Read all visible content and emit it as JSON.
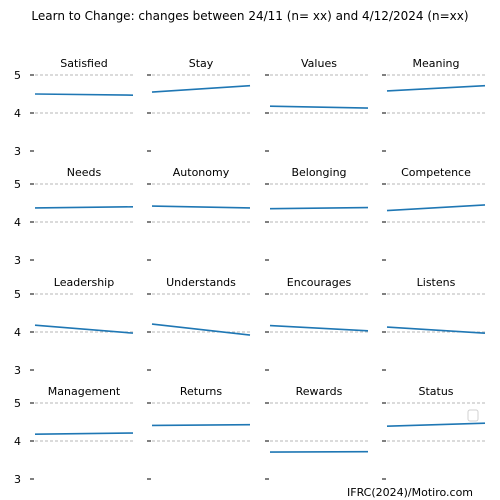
{
  "title": "Learn to Change: changes between 24/11 (n= xx) and 4/12/2024 (n=xx)",
  "credit": "IFRC(2024)/Motiro.com",
  "colors": {
    "line": "#1f77b4",
    "grid": "#a0a0a0"
  },
  "chart_data": {
    "type": "line",
    "layout": {
      "rows": 4,
      "cols": 4
    },
    "ylim": [
      3,
      5
    ],
    "yticks": [
      3,
      4,
      5
    ],
    "grid": "dashed horizontal at y=4 and y=5",
    "legend": "right, empty box",
    "panels": [
      {
        "name": "Satisfied",
        "values": [
          4.5,
          4.47
        ]
      },
      {
        "name": "Stay",
        "values": [
          4.55,
          4.72
        ]
      },
      {
        "name": "Values",
        "values": [
          4.18,
          4.13
        ]
      },
      {
        "name": "Meaning",
        "values": [
          4.58,
          4.72
        ]
      },
      {
        "name": "Needs",
        "values": [
          4.37,
          4.4
        ]
      },
      {
        "name": "Autonomy",
        "values": [
          4.42,
          4.37
        ]
      },
      {
        "name": "Belonging",
        "values": [
          4.35,
          4.38
        ]
      },
      {
        "name": "Competence",
        "values": [
          4.3,
          4.45
        ]
      },
      {
        "name": "Leadership",
        "values": [
          4.18,
          3.97
        ]
      },
      {
        "name": "Understands",
        "values": [
          4.21,
          3.92
        ]
      },
      {
        "name": "Encourages",
        "values": [
          4.17,
          4.03
        ]
      },
      {
        "name": "Listens",
        "values": [
          4.13,
          3.97
        ]
      },
      {
        "name": "Management",
        "values": [
          4.18,
          4.21
        ]
      },
      {
        "name": "Returns",
        "values": [
          4.41,
          4.43
        ]
      },
      {
        "name": "Rewards",
        "values": [
          3.71,
          3.72
        ]
      },
      {
        "name": "Status",
        "values": [
          4.39,
          4.47
        ]
      }
    ]
  }
}
